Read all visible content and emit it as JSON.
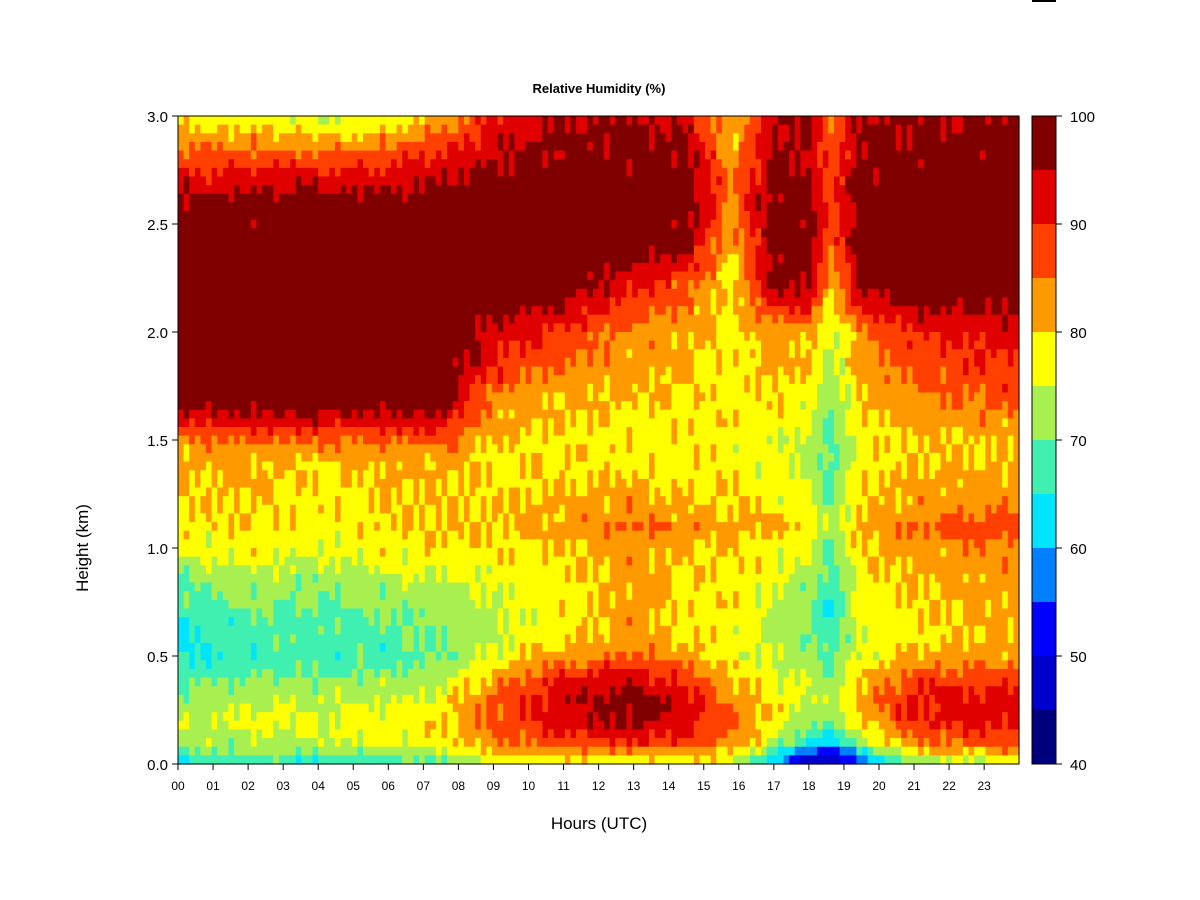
{
  "chart_data": {
    "type": "heatmap",
    "title": "Relative Humidity (%)",
    "xlabel": "Hours (UTC)",
    "ylabel": "Height (km)",
    "xlim": [
      0,
      24
    ],
    "ylim": [
      0,
      3.0
    ],
    "x_tick_labels": [
      "00",
      "01",
      "02",
      "03",
      "04",
      "05",
      "06",
      "07",
      "08",
      "09",
      "10",
      "11",
      "12",
      "13",
      "14",
      "15",
      "16",
      "17",
      "18",
      "19",
      "20",
      "21",
      "22",
      "23"
    ],
    "y_tick_labels": [
      "0.0",
      "0.5",
      "1.0",
      "1.5",
      "2.0",
      "2.5",
      "3.0"
    ],
    "y_ticks": [
      0,
      0.5,
      1.0,
      1.5,
      2.0,
      2.5,
      3.0
    ],
    "colorbar": {
      "range": [
        40,
        100
      ],
      "levels": [
        40,
        45,
        50,
        55,
        60,
        65,
        70,
        75,
        80,
        85,
        90,
        95,
        100
      ],
      "tick_values": [
        40,
        50,
        60,
        70,
        80,
        90,
        100
      ],
      "tick_labels": [
        "40",
        "50",
        "60",
        "70",
        "80",
        "90",
        "100"
      ],
      "colors": [
        "#00007f",
        "#0000cd",
        "#0000ff",
        "#0080ff",
        "#00e5ff",
        "#40f0b0",
        "#a8f050",
        "#ffff00",
        "#ff9900",
        "#ff4000",
        "#e00000",
        "#800000"
      ]
    },
    "grid": false,
    "colormap": "jet-like, 12 discrete levels",
    "profile_heights_km": [
      0.0,
      0.05,
      0.1,
      0.2,
      0.3,
      0.4,
      0.5,
      0.6,
      0.8,
      1.0,
      1.1,
      1.2,
      1.4,
      1.5,
      1.6,
      1.7,
      1.8,
      2.0,
      2.2,
      2.4,
      2.6,
      2.7,
      2.8,
      2.9,
      3.0
    ],
    "profiles": [
      {
        "hour": 0.0,
        "rh": [
          64,
          68,
          72,
          74,
          72,
          68,
          64,
          64,
          68,
          76,
          79,
          79,
          81,
          84,
          92,
          98,
          99,
          99,
          99,
          99,
          97,
          92,
          88,
          82,
          76
        ]
      },
      {
        "hour": 2.0,
        "rh": [
          66,
          70,
          74,
          76,
          74,
          70,
          67,
          68,
          72,
          78,
          80,
          80,
          81,
          86,
          94,
          99,
          99,
          99,
          99,
          99,
          98,
          93,
          88,
          82,
          78
        ]
      },
      {
        "hour": 4.0,
        "rh": [
          64,
          70,
          74,
          76,
          74,
          70,
          67,
          68,
          70,
          76,
          78,
          78,
          80,
          85,
          94,
          99,
          99,
          99,
          99,
          99,
          98,
          93,
          87,
          80,
          74
        ]
      },
      {
        "hour": 6.0,
        "rh": [
          66,
          72,
          76,
          77,
          75,
          71,
          68,
          69,
          72,
          78,
          80,
          80,
          81,
          86,
          94,
          99,
          99,
          99,
          99,
          99,
          98,
          93,
          88,
          82,
          76
        ]
      },
      {
        "hour": 7.5,
        "rh": [
          68,
          74,
          78,
          79,
          77,
          74,
          70,
          70,
          74,
          79,
          80,
          80,
          81,
          86,
          94,
          99,
          99,
          99,
          99,
          99,
          99,
          96,
          92,
          86,
          80
        ]
      },
      {
        "hour": 9.0,
        "rh": [
          74,
          80,
          84,
          87,
          86,
          82,
          76,
          74,
          75,
          79,
          80,
          80,
          79,
          80,
          82,
          84,
          89,
          94,
          99,
          99,
          99,
          97,
          95,
          93,
          90
        ]
      },
      {
        "hour": 11.0,
        "rh": [
          76,
          82,
          88,
          93,
          93,
          90,
          82,
          78,
          78,
          80,
          82,
          81,
          79,
          79,
          80,
          81,
          84,
          88,
          98,
          99,
          99,
          99,
          97,
          96,
          95
        ]
      },
      {
        "hour": 13.0,
        "rh": [
          76,
          83,
          90,
          97,
          98,
          93,
          86,
          82,
          82,
          82,
          86,
          82,
          79,
          79,
          79,
          80,
          81,
          84,
          91,
          99,
          99,
          99,
          97,
          96,
          95
        ]
      },
      {
        "hour": 14.5,
        "rh": [
          76,
          82,
          88,
          93,
          92,
          88,
          82,
          79,
          79,
          80,
          84,
          80,
          78,
          79,
          79,
          80,
          80,
          82,
          86,
          97,
          99,
          99,
          97,
          95,
          94
        ]
      },
      {
        "hour": 15.8,
        "rh": [
          75,
          80,
          84,
          86,
          84,
          80,
          77,
          78,
          79,
          80,
          80,
          80,
          78,
          78,
          79,
          78,
          78,
          78,
          78,
          80,
          84,
          84,
          82,
          80,
          80
        ]
      },
      {
        "hour": 17.0,
        "rh": [
          60,
          66,
          74,
          78,
          78,
          76,
          74,
          74,
          75,
          78,
          82,
          79,
          76,
          76,
          78,
          80,
          81,
          82,
          96,
          99,
          98,
          97,
          96,
          95,
          95
        ]
      },
      {
        "hour": 18.0,
        "rh": [
          44,
          54,
          64,
          72,
          75,
          74,
          72,
          70,
          72,
          76,
          78,
          76,
          74,
          74,
          76,
          78,
          79,
          82,
          96,
          99,
          97,
          96,
          95,
          95,
          95
        ]
      },
      {
        "hour": 18.6,
        "rh": [
          42,
          50,
          62,
          70,
          72,
          70,
          68,
          66,
          66,
          70,
          72,
          70,
          68,
          68,
          68,
          70,
          72,
          74,
          80,
          86,
          88,
          88,
          86,
          86,
          86
        ]
      },
      {
        "hour": 19.5,
        "rh": [
          55,
          64,
          72,
          80,
          82,
          80,
          76,
          76,
          78,
          80,
          82,
          80,
          78,
          78,
          80,
          80,
          82,
          84,
          96,
          99,
          98,
          97,
          96,
          96,
          96
        ]
      },
      {
        "hour": 21.0,
        "rh": [
          70,
          78,
          85,
          90,
          91,
          88,
          82,
          79,
          80,
          82,
          86,
          82,
          80,
          80,
          82,
          84,
          86,
          90,
          99,
          99,
          99,
          99,
          97,
          96,
          95
        ]
      },
      {
        "hour": 23.0,
        "rh": [
          74,
          80,
          86,
          92,
          92,
          88,
          82,
          80,
          82,
          84,
          88,
          84,
          80,
          80,
          84,
          86,
          88,
          92,
          99,
          99,
          99,
          99,
          98,
          97,
          96
        ]
      },
      {
        "hour": 23.9,
        "rh": [
          75,
          81,
          87,
          92,
          92,
          88,
          82,
          80,
          82,
          84,
          88,
          84,
          80,
          80,
          84,
          86,
          88,
          92,
          99,
          99,
          99,
          99,
          98,
          97,
          96
        ]
      }
    ]
  }
}
